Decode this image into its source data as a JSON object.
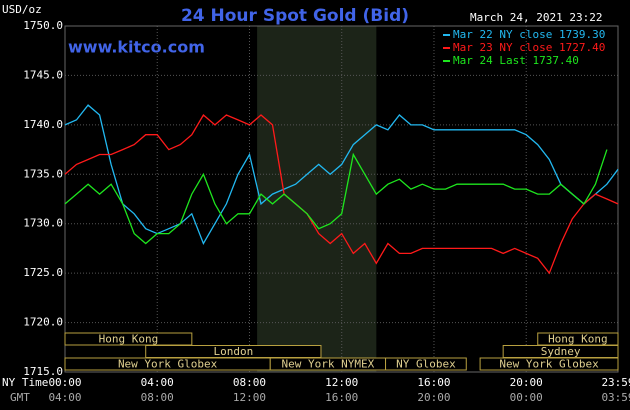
{
  "chart_data": {
    "type": "line",
    "title": "24 Hour Spot Gold (Bid)",
    "date": "March 24, 2021 23:22",
    "source": "www.kitco.com",
    "y_label": "USD/oz",
    "x_label": "NY Time",
    "x2_label": "GMT",
    "x": [
      0,
      0.5,
      1,
      1.5,
      2,
      2.5,
      3,
      3.5,
      4,
      4.5,
      5,
      5.5,
      6,
      6.5,
      7,
      7.5,
      8,
      8.5,
      9,
      9.5,
      10,
      10.5,
      11,
      11.5,
      12,
      12.5,
      13,
      13.5,
      14,
      14.5,
      15,
      15.5,
      16,
      16.5,
      17,
      17.5,
      18,
      18.5,
      19,
      19.5,
      20,
      20.5,
      21,
      21.5,
      22,
      22.5,
      23,
      23.5,
      23.98
    ],
    "xlim": [
      0,
      23.98
    ],
    "xticks": [
      {
        "value": 0,
        "label": "00:00"
      },
      {
        "value": 4,
        "label": "04:00"
      },
      {
        "value": 8,
        "label": "08:00"
      },
      {
        "value": 12,
        "label": "12:00"
      },
      {
        "value": 16,
        "label": "16:00"
      },
      {
        "value": 20,
        "label": "20:00"
      },
      {
        "value": 23.98,
        "label": "23:59"
      }
    ],
    "x2ticks": [
      {
        "value": 0,
        "label": "04:00"
      },
      {
        "value": 4,
        "label": "08:00"
      },
      {
        "value": 8,
        "label": "12:00"
      },
      {
        "value": 12,
        "label": "16:00"
      },
      {
        "value": 16,
        "label": "20:00"
      },
      {
        "value": 20,
        "label": "00:00"
      },
      {
        "value": 23.98,
        "label": "03:59"
      }
    ],
    "ylim": [
      1715,
      1750
    ],
    "yticks": [
      {
        "value": 1715,
        "label": "1715.0"
      },
      {
        "value": 1720,
        "label": "1720.0"
      },
      {
        "value": 1725,
        "label": "1725.0"
      },
      {
        "value": 1730,
        "label": "1730.0"
      },
      {
        "value": 1735,
        "label": "1735.0"
      },
      {
        "value": 1740,
        "label": "1740.0"
      },
      {
        "value": 1745,
        "label": "1745.0"
      },
      {
        "value": 1750,
        "label": "1750.0"
      }
    ],
    "grid": true,
    "shaded_x": [
      8.33,
      13.5
    ],
    "series": [
      {
        "name": "Mar 22 NY close 1739.30",
        "color": "#22b8f0",
        "values": [
          1740,
          1740.5,
          1742,
          1741,
          1736,
          1732,
          1731,
          1729.5,
          1729,
          1729.5,
          1730,
          1731,
          1728,
          1730,
          1732,
          1735,
          1737,
          1732,
          1733,
          1733.5,
          1734,
          1735,
          1736,
          1735,
          1736,
          1738,
          1739,
          1740,
          1739.5,
          1741,
          1740,
          1740,
          1739.5,
          1739.5,
          1739.5,
          1739.5,
          1739.5,
          1739.5,
          1739.5,
          1739.5,
          1739,
          1738,
          1736.5,
          1734,
          1733,
          1732,
          1733,
          1734,
          1735.5
        ]
      },
      {
        "name": "Mar 23 NY close 1727.40",
        "color": "#ff1a1a",
        "values": [
          1735,
          1736,
          1736.5,
          1737,
          1737,
          1737.5,
          1738,
          1739,
          1739,
          1737.5,
          1738,
          1739,
          1741,
          1740,
          1741,
          1740.5,
          1740,
          1741,
          1740,
          1733,
          1732,
          1731,
          1729,
          1728,
          1729,
          1727,
          1728,
          1726,
          1728,
          1727,
          1727,
          1727.5,
          1727.5,
          1727.5,
          1727.5,
          1727.5,
          1727.5,
          1727.5,
          1727,
          1727.5,
          1727,
          1726.5,
          1725,
          1728,
          1730.5,
          1732,
          1733,
          1732.5,
          1732
        ]
      },
      {
        "name": "Mar 24 Last 1737.40",
        "color": "#1ee61e",
        "values": [
          1732,
          1733,
          1734,
          1733,
          1734,
          1732,
          1729,
          1728,
          1729,
          1729,
          1730,
          1733,
          1735,
          1732,
          1730,
          1731,
          1731,
          1733,
          1732,
          1733,
          1732,
          1731,
          1729.5,
          1730,
          1731,
          1737,
          1735,
          1733,
          1734,
          1734.5,
          1733.5,
          1734,
          1733.5,
          1733.5,
          1734,
          1734,
          1734,
          1734,
          1734,
          1733.5,
          1733.5,
          1733,
          1733,
          1734,
          1733,
          1732,
          1734,
          1737.5,
          null
        ]
      }
    ],
    "sessions": [
      {
        "label": "Hong Kong",
        "start": 0,
        "end": 5.5,
        "row": 1
      },
      {
        "label": "London",
        "start": 3.5,
        "end": 11.1,
        "row": 2
      },
      {
        "label": "New York Globex",
        "start": 0,
        "end": 8.9,
        "row": 3
      },
      {
        "label": "New York NYMEX",
        "start": 8.9,
        "end": 13.9,
        "row": 3
      },
      {
        "label": "NY Globex",
        "start": 13.9,
        "end": 17.4,
        "row": 3
      },
      {
        "label": "Hong Kong",
        "start": 20.5,
        "end": 23.98,
        "row": 1
      },
      {
        "label": "Sydney",
        "start": 19,
        "end": 23.98,
        "row": 2
      },
      {
        "label": "New York Globex",
        "start": 18,
        "end": 23.98,
        "row": 3
      }
    ]
  }
}
